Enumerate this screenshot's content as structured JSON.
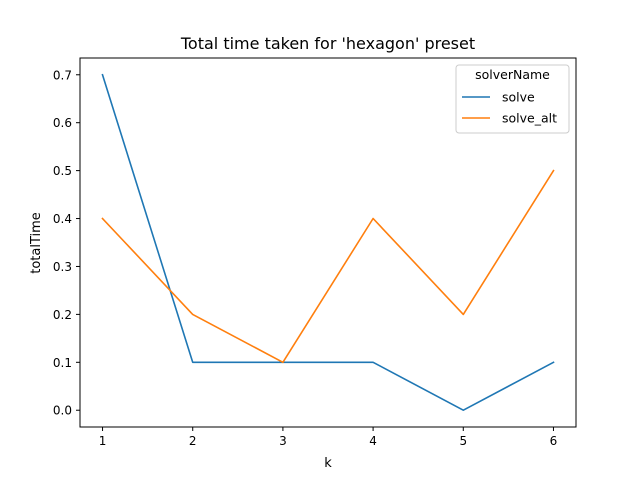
{
  "chart_data": {
    "type": "line",
    "title": "Total time taken for 'hexagon' preset",
    "xlabel": "k",
    "ylabel": "totalTime",
    "x": [
      1,
      2,
      3,
      4,
      5,
      6
    ],
    "xticks": [
      "1",
      "2",
      "3",
      "4",
      "5",
      "6"
    ],
    "yticks": [
      "0.0",
      "0.1",
      "0.2",
      "0.3",
      "0.4",
      "0.5",
      "0.6",
      "0.7"
    ],
    "xlim": [
      0.75,
      6.25
    ],
    "ylim": [
      -0.035,
      0.735
    ],
    "grid": false,
    "legend": {
      "title": "solverName",
      "placement": "top-right"
    },
    "series": [
      {
        "name": "solve",
        "color": "#1f77b4",
        "values": [
          0.7,
          0.1,
          0.1,
          0.1,
          0.0,
          0.1
        ]
      },
      {
        "name": "solve_alt",
        "color": "#ff7f0e",
        "values": [
          0.4,
          0.2,
          0.1,
          0.4,
          0.2,
          0.5
        ]
      }
    ]
  }
}
